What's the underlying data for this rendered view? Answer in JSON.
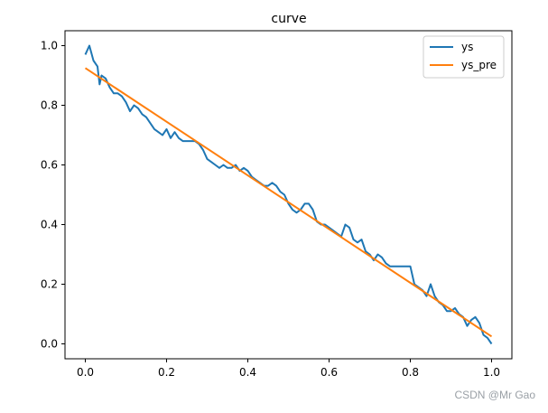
{
  "chart_data": {
    "type": "line",
    "title": "curve",
    "xlabel": "",
    "ylabel": "",
    "xlim": [
      -0.05,
      1.05
    ],
    "ylim": [
      -0.05,
      1.05
    ],
    "xticks": [
      0.0,
      0.2,
      0.4,
      0.6,
      0.8,
      1.0
    ],
    "xtick_labels": [
      "0.0",
      "0.2",
      "0.4",
      "0.6",
      "0.8",
      "1.0"
    ],
    "yticks": [
      0.0,
      0.2,
      0.4,
      0.6,
      0.8,
      1.0
    ],
    "ytick_labels": [
      "0.0",
      "0.2",
      "0.4",
      "0.6",
      "0.8",
      "1.0"
    ],
    "grid": false,
    "legend_position": "top-right",
    "series": [
      {
        "name": "ys",
        "color": "#1f77b4",
        "x": [
          0.0,
          0.01,
          0.02,
          0.03,
          0.035,
          0.04,
          0.05,
          0.06,
          0.07,
          0.08,
          0.09,
          0.1,
          0.11,
          0.12,
          0.13,
          0.14,
          0.15,
          0.16,
          0.17,
          0.18,
          0.19,
          0.2,
          0.21,
          0.22,
          0.23,
          0.24,
          0.25,
          0.26,
          0.27,
          0.28,
          0.29,
          0.3,
          0.31,
          0.32,
          0.33,
          0.34,
          0.35,
          0.36,
          0.37,
          0.38,
          0.39,
          0.4,
          0.41,
          0.42,
          0.43,
          0.44,
          0.45,
          0.46,
          0.47,
          0.48,
          0.49,
          0.5,
          0.51,
          0.52,
          0.53,
          0.54,
          0.55,
          0.56,
          0.57,
          0.58,
          0.59,
          0.6,
          0.61,
          0.62,
          0.63,
          0.64,
          0.65,
          0.66,
          0.67,
          0.68,
          0.69,
          0.7,
          0.71,
          0.72,
          0.73,
          0.74,
          0.75,
          0.76,
          0.77,
          0.78,
          0.79,
          0.8,
          0.81,
          0.82,
          0.83,
          0.84,
          0.85,
          0.86,
          0.87,
          0.88,
          0.89,
          0.9,
          0.91,
          0.92,
          0.93,
          0.94,
          0.95,
          0.96,
          0.97,
          0.98,
          0.99,
          1.0
        ],
        "y": [
          0.97,
          1.0,
          0.95,
          0.93,
          0.87,
          0.9,
          0.89,
          0.86,
          0.84,
          0.84,
          0.83,
          0.81,
          0.78,
          0.8,
          0.79,
          0.77,
          0.76,
          0.74,
          0.72,
          0.71,
          0.7,
          0.72,
          0.69,
          0.71,
          0.69,
          0.68,
          0.68,
          0.68,
          0.68,
          0.67,
          0.65,
          0.62,
          0.61,
          0.6,
          0.59,
          0.6,
          0.59,
          0.59,
          0.6,
          0.58,
          0.59,
          0.58,
          0.56,
          0.55,
          0.54,
          0.53,
          0.53,
          0.54,
          0.53,
          0.51,
          0.5,
          0.47,
          0.45,
          0.44,
          0.45,
          0.47,
          0.47,
          0.45,
          0.41,
          0.4,
          0.4,
          0.39,
          0.38,
          0.37,
          0.36,
          0.4,
          0.39,
          0.35,
          0.34,
          0.35,
          0.31,
          0.3,
          0.28,
          0.3,
          0.29,
          0.27,
          0.26,
          0.26,
          0.26,
          0.26,
          0.26,
          0.26,
          0.2,
          0.19,
          0.18,
          0.16,
          0.2,
          0.16,
          0.14,
          0.13,
          0.11,
          0.11,
          0.12,
          0.1,
          0.09,
          0.06,
          0.08,
          0.09,
          0.07,
          0.03,
          0.02,
          0.0
        ]
      },
      {
        "name": "ys_pre",
        "color": "#ff7f0e",
        "x": [
          0.0,
          1.0
        ],
        "y": [
          0.925,
          0.025
        ]
      }
    ]
  },
  "watermark": "CSDN @Mr  Gao"
}
